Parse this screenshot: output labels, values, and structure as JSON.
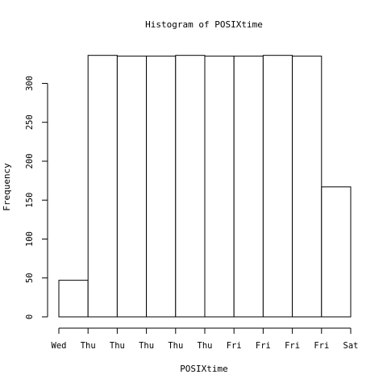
{
  "chart_data": {
    "type": "bar",
    "title": "Histogram of POSIXtime",
    "xlabel": "POSIXtime",
    "ylabel": "Frequency",
    "ylim": [
      0,
      340
    ],
    "y_ticks": [
      0,
      50,
      100,
      150,
      200,
      250,
      300
    ],
    "x_tick_labels": [
      "Wed",
      "Thu",
      "Thu",
      "Thu",
      "Thu",
      "Thu",
      "Fri",
      "Fri",
      "Fri",
      "Fri",
      "Sat"
    ],
    "values": [
      47,
      336,
      335,
      335,
      336,
      335,
      335,
      336,
      335,
      167
    ],
    "grid": false,
    "legend": "none",
    "colors": {
      "bar_fill": "#ffffff",
      "bar_stroke": "#000000"
    }
  }
}
